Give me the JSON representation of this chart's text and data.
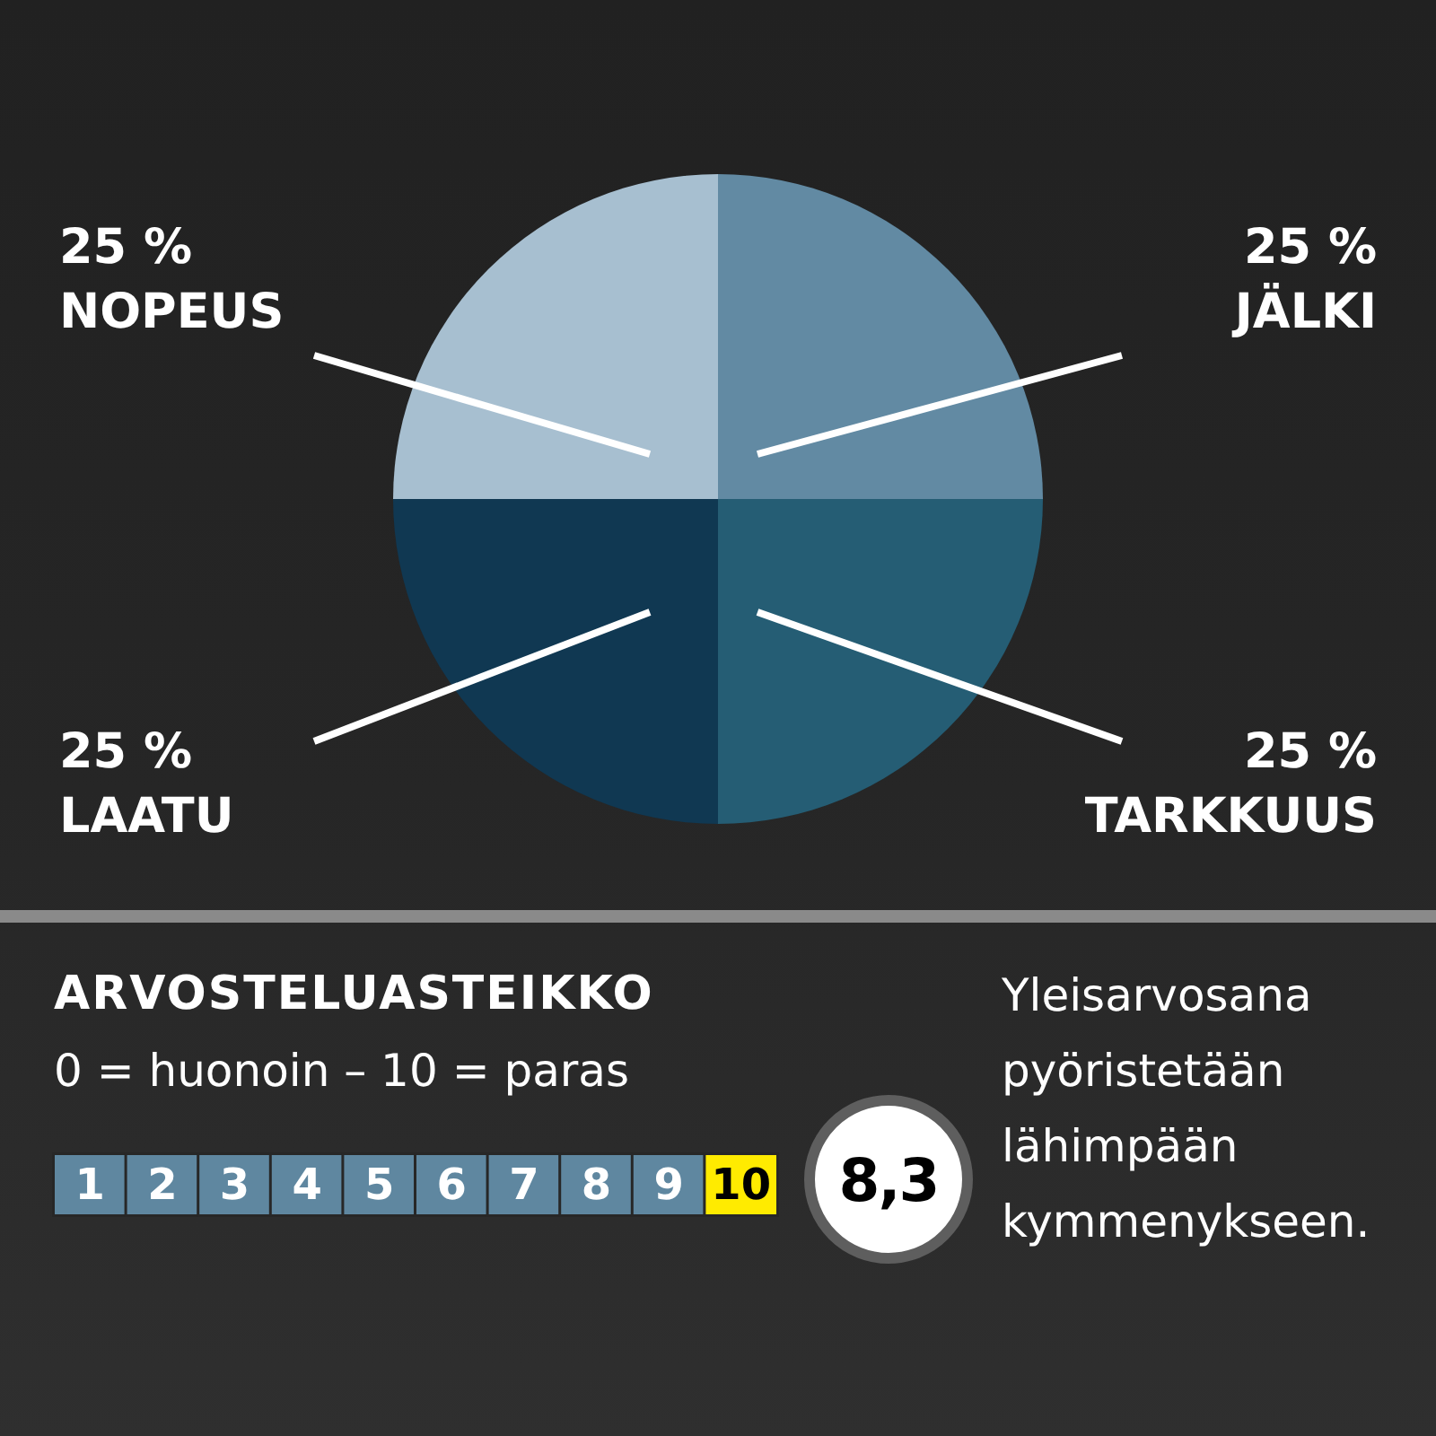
{
  "chart_data": [
    {
      "type": "pie",
      "categories": [
        "JÄLKI",
        "TARKKUUS",
        "LAATU",
        "NOPEUS"
      ],
      "values": [
        25,
        25,
        25,
        25
      ],
      "value_labels": [
        "25 %",
        "25 %",
        "25 %",
        "25 %"
      ],
      "colors": [
        "#628aa3",
        "#255d74",
        "#103852",
        "#a7bfd0"
      ]
    },
    {
      "type": "heatmap",
      "title": "ARVOSTELUASTEIKKO",
      "subtitle": "0 = huonoin – 10 = paras",
      "categories": [
        null,
        null,
        null,
        null,
        null,
        null,
        null,
        null,
        null,
        null
      ],
      "y_categories": [
        null
      ],
      "cells": [
        [
          1,
          2,
          3,
          4,
          5,
          6,
          7,
          8,
          9,
          10
        ]
      ],
      "colors": [
        "#5f87a0",
        "#5f87a0",
        "#5f87a0",
        "#5f87a0",
        "#5f87a0",
        "#5f87a0",
        "#5f87a0",
        "#5f87a0",
        "#5f87a0",
        "#ffeb00"
      ],
      "data_labels": true,
      "annotations": [
        "8,3",
        "Yleisarvosana pyöristetään lähimpään kymmenykseen."
      ]
    }
  ]
}
